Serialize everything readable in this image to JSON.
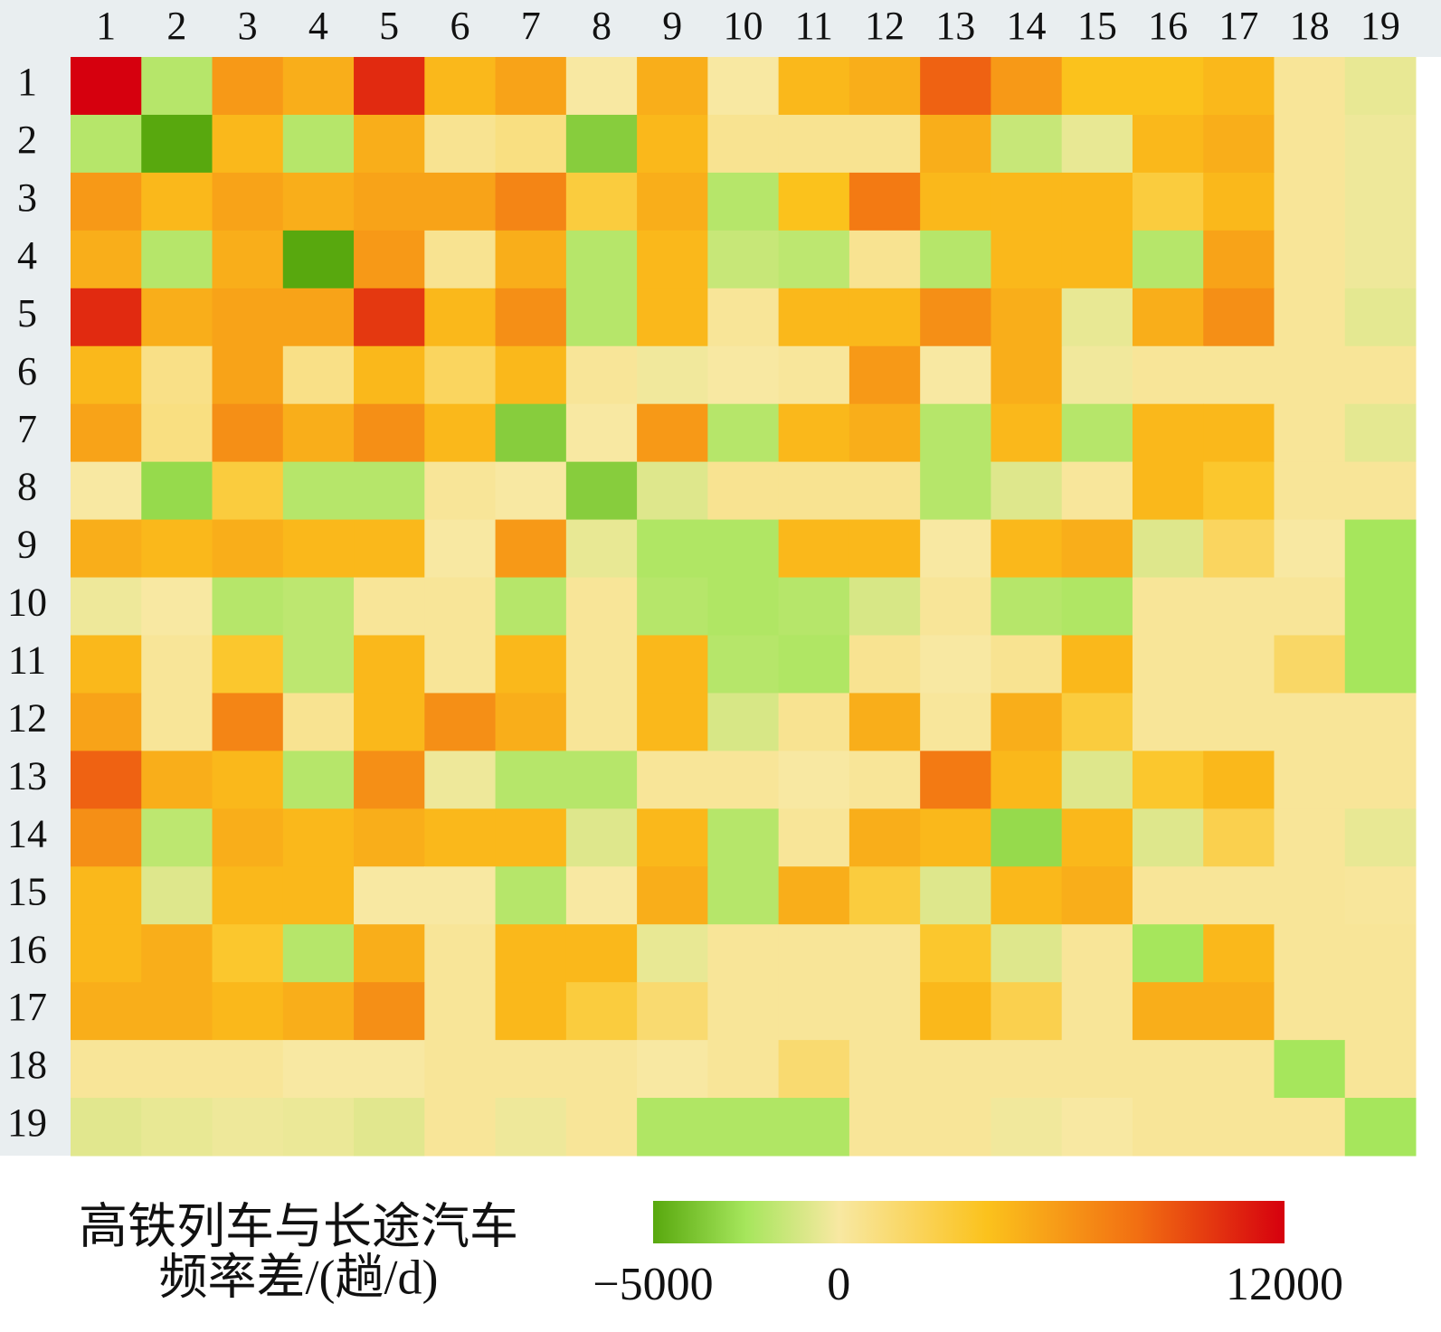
{
  "chart_data": {
    "type": "heatmap",
    "x_categories": [
      "1",
      "2",
      "3",
      "4",
      "5",
      "6",
      "7",
      "8",
      "9",
      "10",
      "11",
      "12",
      "13",
      "14",
      "15",
      "16",
      "17",
      "18",
      "19"
    ],
    "y_categories": [
      "1",
      "2",
      "3",
      "4",
      "5",
      "6",
      "7",
      "8",
      "9",
      "10",
      "11",
      "12",
      "13",
      "14",
      "15",
      "16",
      "17",
      "18",
      "19"
    ],
    "values": [
      [
        12000,
        -2000,
        6000,
        5000,
        10500,
        4500,
        5500,
        0,
        5000,
        0,
        4500,
        5000,
        8500,
        6000,
        4000,
        4000,
        4500,
        300,
        -500
      ],
      [
        -2000,
        -5000,
        4500,
        -2000,
        5000,
        500,
        1000,
        -3500,
        4500,
        500,
        500,
        500,
        5000,
        -1500,
        -500,
        4500,
        5000,
        300,
        -300
      ],
      [
        6000,
        4500,
        5500,
        5000,
        5500,
        5500,
        7000,
        3000,
        5000,
        -2000,
        4000,
        7500,
        4500,
        4500,
        4500,
        3000,
        4500,
        300,
        -300
      ],
      [
        5000,
        -2000,
        5000,
        -5000,
        6000,
        500,
        5000,
        -2000,
        4500,
        -1500,
        -1800,
        500,
        -2000,
        4500,
        4500,
        -2000,
        5500,
        300,
        -300
      ],
      [
        10500,
        5000,
        5500,
        5500,
        10000,
        4500,
        6500,
        -2000,
        4500,
        300,
        4500,
        4500,
        6500,
        5000,
        -500,
        5000,
        6500,
        300,
        -600
      ],
      [
        4500,
        800,
        5500,
        800,
        4500,
        2000,
        4500,
        300,
        -200,
        0,
        200,
        6000,
        0,
        5000,
        -200,
        300,
        300,
        300,
        300
      ],
      [
        5500,
        1000,
        6500,
        5000,
        6500,
        4500,
        -3500,
        0,
        6000,
        -2000,
        4500,
        5000,
        -2000,
        4500,
        -2000,
        4500,
        4500,
        300,
        -600
      ],
      [
        0,
        -3000,
        3000,
        -2000,
        -2000,
        300,
        0,
        -3500,
        -800,
        500,
        500,
        500,
        -2000,
        -800,
        200,
        4500,
        3500,
        300,
        300
      ],
      [
        5000,
        4500,
        5000,
        4500,
        4500,
        0,
        6000,
        -500,
        -2200,
        -2200,
        4500,
        4500,
        0,
        4500,
        5000,
        -800,
        2000,
        0,
        -2500
      ],
      [
        -300,
        0,
        -2000,
        -1800,
        300,
        300,
        -2000,
        300,
        -2000,
        -2200,
        -2000,
        -1000,
        300,
        -2000,
        -2200,
        300,
        300,
        300,
        -2500
      ],
      [
        4500,
        300,
        3500,
        -1800,
        4500,
        300,
        4500,
        300,
        4500,
        -2000,
        -2200,
        500,
        0,
        500,
        4500,
        300,
        300,
        1800,
        -2500
      ],
      [
        5500,
        300,
        7000,
        500,
        4500,
        6500,
        5000,
        300,
        4500,
        -1000,
        500,
        5000,
        200,
        5000,
        3000,
        300,
        300,
        300,
        300
      ],
      [
        8500,
        5000,
        4500,
        -2000,
        6500,
        -300,
        -2000,
        -2000,
        300,
        300,
        0,
        300,
        7500,
        4500,
        -800,
        3500,
        4500,
        300,
        300
      ],
      [
        6500,
        -1800,
        5000,
        4500,
        5000,
        4500,
        4500,
        -800,
        4500,
        -2000,
        300,
        5000,
        4500,
        -3000,
        4500,
        -800,
        2500,
        300,
        -500
      ],
      [
        4500,
        -800,
        4500,
        4500,
        0,
        0,
        -2000,
        0,
        5000,
        -2000,
        5000,
        3000,
        -800,
        4500,
        5000,
        300,
        300,
        300,
        200
      ],
      [
        4500,
        5000,
        3500,
        -2000,
        5000,
        300,
        4500,
        4500,
        -500,
        300,
        300,
        300,
        3500,
        -800,
        300,
        -2500,
        4500,
        300,
        300
      ],
      [
        5000,
        5000,
        4500,
        5000,
        6500,
        300,
        4500,
        3000,
        1500,
        300,
        300,
        300,
        4500,
        2500,
        300,
        5000,
        5000,
        300,
        300
      ],
      [
        300,
        300,
        300,
        0,
        0,
        300,
        300,
        300,
        0,
        300,
        1500,
        300,
        300,
        300,
        300,
        300,
        300,
        -2500,
        300
      ],
      [
        -700,
        -500,
        -300,
        -400,
        -700,
        300,
        -300,
        300,
        -2200,
        -2200,
        -2200,
        300,
        300,
        -200,
        0,
        300,
        300,
        300,
        -2500
      ]
    ],
    "colorscale": [
      [
        -5000,
        "#58a80e"
      ],
      [
        -2500,
        "#a6e65c"
      ],
      [
        0,
        "#f8e8a2"
      ],
      [
        4000,
        "#fbc21c"
      ],
      [
        8000,
        "#f27012"
      ],
      [
        12000,
        "#d6000e"
      ]
    ],
    "clim": [
      -5000,
      12000
    ],
    "cticks": [
      {
        "value": -5000,
        "label": "−5000"
      },
      0,
      12000
    ],
    "colorbar_title": [
      "高铁列车与长途汽车",
      "频率差/(趟/d)"
    ]
  }
}
